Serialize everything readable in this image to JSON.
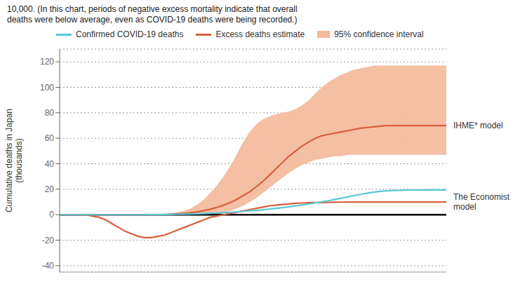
{
  "chart_data": {
    "type": "line",
    "title": "10,000. (In this chart, periods of negative excess mortality indicate that overall\ndeaths were below average, even as COVID-19 deaths were being recorded.)",
    "y_label": "Cumulative deaths in Japan\n(thousands)",
    "categories": [
      null,
      null,
      null,
      null,
      null,
      null,
      null,
      null,
      null,
      null,
      null,
      null,
      null,
      null,
      null,
      null,
      null,
      null,
      null,
      null,
      null,
      null,
      null,
      null,
      null,
      null,
      null,
      null,
      null,
      null,
      null,
      null,
      null,
      null,
      null,
      null,
      null,
      null,
      null,
      null,
      null,
      null,
      null,
      null,
      null,
      null,
      null,
      null,
      null,
      null,
      null,
      null,
      null,
      null,
      null,
      null,
      null,
      null,
      null,
      null
    ],
    "ylim": [
      -45,
      130
    ],
    "yticks": [
      -40,
      -20,
      0,
      20,
      40,
      60,
      80,
      100,
      120
    ],
    "grid": true,
    "legend": "top",
    "tick_labels": "y",
    "reference_lines": [
      {
        "y": 0,
        "color": "#000000"
      }
    ],
    "series": [
      {
        "name": "95% confidence interval",
        "type": "band",
        "color": "#f4b89a",
        "lower": [
          0,
          0,
          0,
          0,
          0,
          0,
          0,
          0,
          0,
          0,
          0,
          0,
          0,
          0,
          0,
          0,
          0,
          0,
          0,
          0,
          0,
          0,
          0,
          0,
          1,
          2,
          3,
          5,
          7,
          10,
          13,
          17,
          21,
          25,
          29,
          33,
          36,
          39,
          41,
          43,
          44,
          45,
          46,
          46,
          47,
          47,
          47,
          47,
          47,
          47,
          47,
          47,
          47,
          47,
          47,
          47,
          47,
          47,
          47,
          47
        ],
        "upper": [
          0,
          0,
          0,
          0,
          0,
          0,
          0,
          0,
          0,
          0,
          0,
          0,
          0,
          0,
          0,
          0.2,
          0.5,
          1,
          2,
          3,
          5,
          8,
          12,
          17,
          23,
          30,
          38,
          47,
          57,
          65,
          71,
          75,
          77,
          79,
          80,
          81,
          83,
          86,
          90,
          95,
          100,
          104,
          107,
          110,
          112,
          114,
          115,
          116,
          117,
          117,
          117,
          117,
          117,
          117,
          117,
          117,
          117,
          117,
          117,
          117
        ]
      },
      {
        "name": "Excess deaths estimate",
        "type": "line",
        "color": "#d95f3b",
        "annotation": "IHME* model",
        "values": [
          0,
          0,
          0,
          0,
          0,
          0,
          0,
          0,
          0,
          0,
          0,
          0,
          0,
          0,
          0.1,
          0.1,
          0.2,
          0.4,
          0.7,
          1.1,
          1.6,
          2.3,
          3.2,
          4.3,
          5.8,
          7.5,
          9.5,
          12,
          15,
          18,
          22,
          26,
          31,
          36,
          41,
          46,
          50,
          54,
          57,
          60,
          62,
          63,
          64,
          65,
          66,
          67,
          68,
          68.5,
          69,
          69.5,
          70,
          70,
          70,
          70,
          70,
          70,
          70,
          70,
          70,
          70
        ]
      },
      {
        "name": "Excess deaths estimate",
        "type": "line",
        "color": "#d95f3b",
        "annotation": "The Economist\nmodel",
        "values": [
          0,
          0,
          0,
          0,
          0,
          -1,
          -2,
          -4,
          -7,
          -10,
          -13,
          -15,
          -17,
          -18,
          -18,
          -17,
          -16,
          -14,
          -12,
          -10,
          -8,
          -6,
          -4,
          -2,
          -1,
          0,
          1,
          2,
          3,
          4,
          5,
          6,
          7,
          7.5,
          8,
          8.5,
          9,
          9.2,
          9.4,
          9.5,
          9.6,
          9.7,
          9.8,
          9.9,
          10,
          10,
          10,
          10,
          10,
          10,
          10,
          10,
          10,
          10,
          10,
          10,
          10,
          10,
          10,
          10
        ]
      },
      {
        "name": "Confirmed COVID-19 deaths",
        "type": "line",
        "color": "#5bc8d5",
        "values": [
          0,
          0,
          0,
          0,
          0,
          0,
          0,
          0,
          0,
          0,
          0,
          0,
          0,
          0,
          0.1,
          0.1,
          0.2,
          0.3,
          0.4,
          0.5,
          0.6,
          0.7,
          0.9,
          1.1,
          1.3,
          1.6,
          1.9,
          2.2,
          2.6,
          3.0,
          3.4,
          3.9,
          4.4,
          5.0,
          5.6,
          6.2,
          6.9,
          7.6,
          8.4,
          9.2,
          10.1,
          11.0,
          12.0,
          13.0,
          14.1,
          15.1,
          16.1,
          17.0,
          17.8,
          18.4,
          18.8,
          19.0,
          19.2,
          19.3,
          19.4,
          19.4,
          19.5,
          19.5,
          19.5,
          19.5
        ]
      }
    ]
  }
}
